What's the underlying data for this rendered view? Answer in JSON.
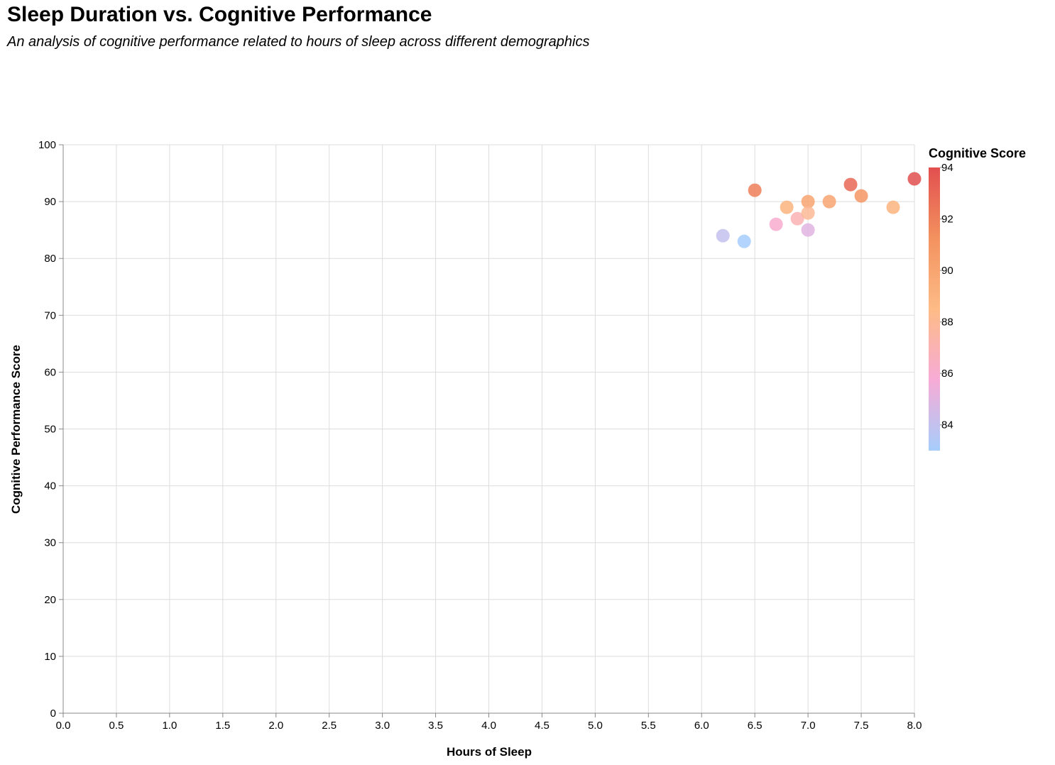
{
  "chart_data": {
    "type": "scatter",
    "title": "Sleep Duration vs. Cognitive Performance",
    "subtitle": "An analysis of cognitive performance related to hours of sleep across different demographics",
    "xlabel": "Hours of Sleep",
    "ylabel": "Cognitive Performance Score",
    "xlim": [
      0,
      8
    ],
    "ylim": [
      0,
      100
    ],
    "x_ticks": [
      0,
      0.5,
      1,
      1.5,
      2,
      2.5,
      3,
      3.5,
      4,
      4.5,
      5,
      5.5,
      6,
      6.5,
      7,
      7.5,
      8
    ],
    "x_tick_labels": [
      "0.0",
      "0.5",
      "1.0",
      "1.5",
      "2.0",
      "2.5",
      "3.0",
      "3.5",
      "4.0",
      "4.5",
      "5.0",
      "5.5",
      "6.0",
      "6.5",
      "7.0",
      "7.5",
      "8.0"
    ],
    "y_ticks": [
      0,
      10,
      20,
      30,
      40,
      50,
      60,
      70,
      80,
      90,
      100
    ],
    "y_tick_labels": [
      "0",
      "10",
      "20",
      "30",
      "40",
      "50",
      "60",
      "70",
      "80",
      "90",
      "100"
    ],
    "grid": true,
    "legend": {
      "title": "Cognitive Score",
      "placement": "right",
      "domain": [
        83,
        94
      ],
      "labels": [
        "94",
        "92",
        "90",
        "88",
        "86",
        "84"
      ],
      "label_values": [
        94,
        92,
        90,
        88,
        86,
        84
      ],
      "color_stops": [
        "#a6cdfb",
        "#f7abd6",
        "#fdbb86",
        "#f3925f",
        "#e24f4f"
      ]
    },
    "points": [
      {
        "x": 6.2,
        "y": 84
      },
      {
        "x": 6.4,
        "y": 83
      },
      {
        "x": 6.5,
        "y": 92
      },
      {
        "x": 6.7,
        "y": 86
      },
      {
        "x": 6.8,
        "y": 89
      },
      {
        "x": 6.9,
        "y": 87
      },
      {
        "x": 7.0,
        "y": 90
      },
      {
        "x": 7.0,
        "y": 88
      },
      {
        "x": 7.0,
        "y": 85
      },
      {
        "x": 7.2,
        "y": 90
      },
      {
        "x": 7.4,
        "y": 93
      },
      {
        "x": 7.5,
        "y": 91
      },
      {
        "x": 7.8,
        "y": 89
      },
      {
        "x": 8.0,
        "y": 94
      }
    ]
  }
}
